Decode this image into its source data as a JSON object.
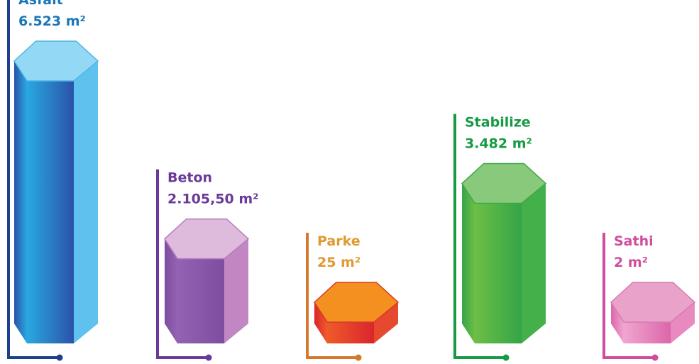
{
  "chart_data": {
    "type": "bar",
    "title": "",
    "xlabel": "",
    "ylabel": "",
    "unit": "m²",
    "categories": [
      "Asfalt",
      "Beton",
      "Parke",
      "Stabilize",
      "Sathi"
    ],
    "values": [
      6523,
      2105.5,
      25,
      3482,
      2
    ],
    "value_labels": [
      "6.523 m²",
      "2.105,50 m²",
      "25 m²",
      "3.482 m²",
      "2 m²"
    ],
    "colors": {
      "Asfalt": {
        "line": "#1e3f8c",
        "label": "#1b76b8",
        "top": "#93d9f5",
        "topStroke": "#4fb4e6",
        "front": "#29a9e0",
        "left": "#2a52a8",
        "right": "#5fc2ee"
      },
      "Beton": {
        "line": "#6b3a99",
        "label": "#6b3a99",
        "top": "#debbdd",
        "topStroke": "#b17fbf",
        "front": "#9462b2",
        "left": "#7e4d9f",
        "right": "#c286c3"
      },
      "Parke": {
        "line": "#d5782b",
        "label": "#e09a31",
        "top": "#f4901f",
        "topStroke": "#d8382b",
        "front": "#ef5a2a",
        "left": "#d9262c",
        "right": "#e64a2e"
      },
      "Stabilize": {
        "line": "#169a43",
        "label": "#169a43",
        "top": "#88c97b",
        "topStroke": "#3fa74a",
        "front": "#6dbe45",
        "left": "#34a548",
        "right": "#44b04a"
      },
      "Sathi": {
        "line": "#cf4d9c",
        "label": "#cf4d9c",
        "top": "#e9a2c9",
        "topStroke": "#d57cb0",
        "front": "#f0a6cf",
        "left": "#dc66ab",
        "right": "#e889bf"
      }
    }
  }
}
